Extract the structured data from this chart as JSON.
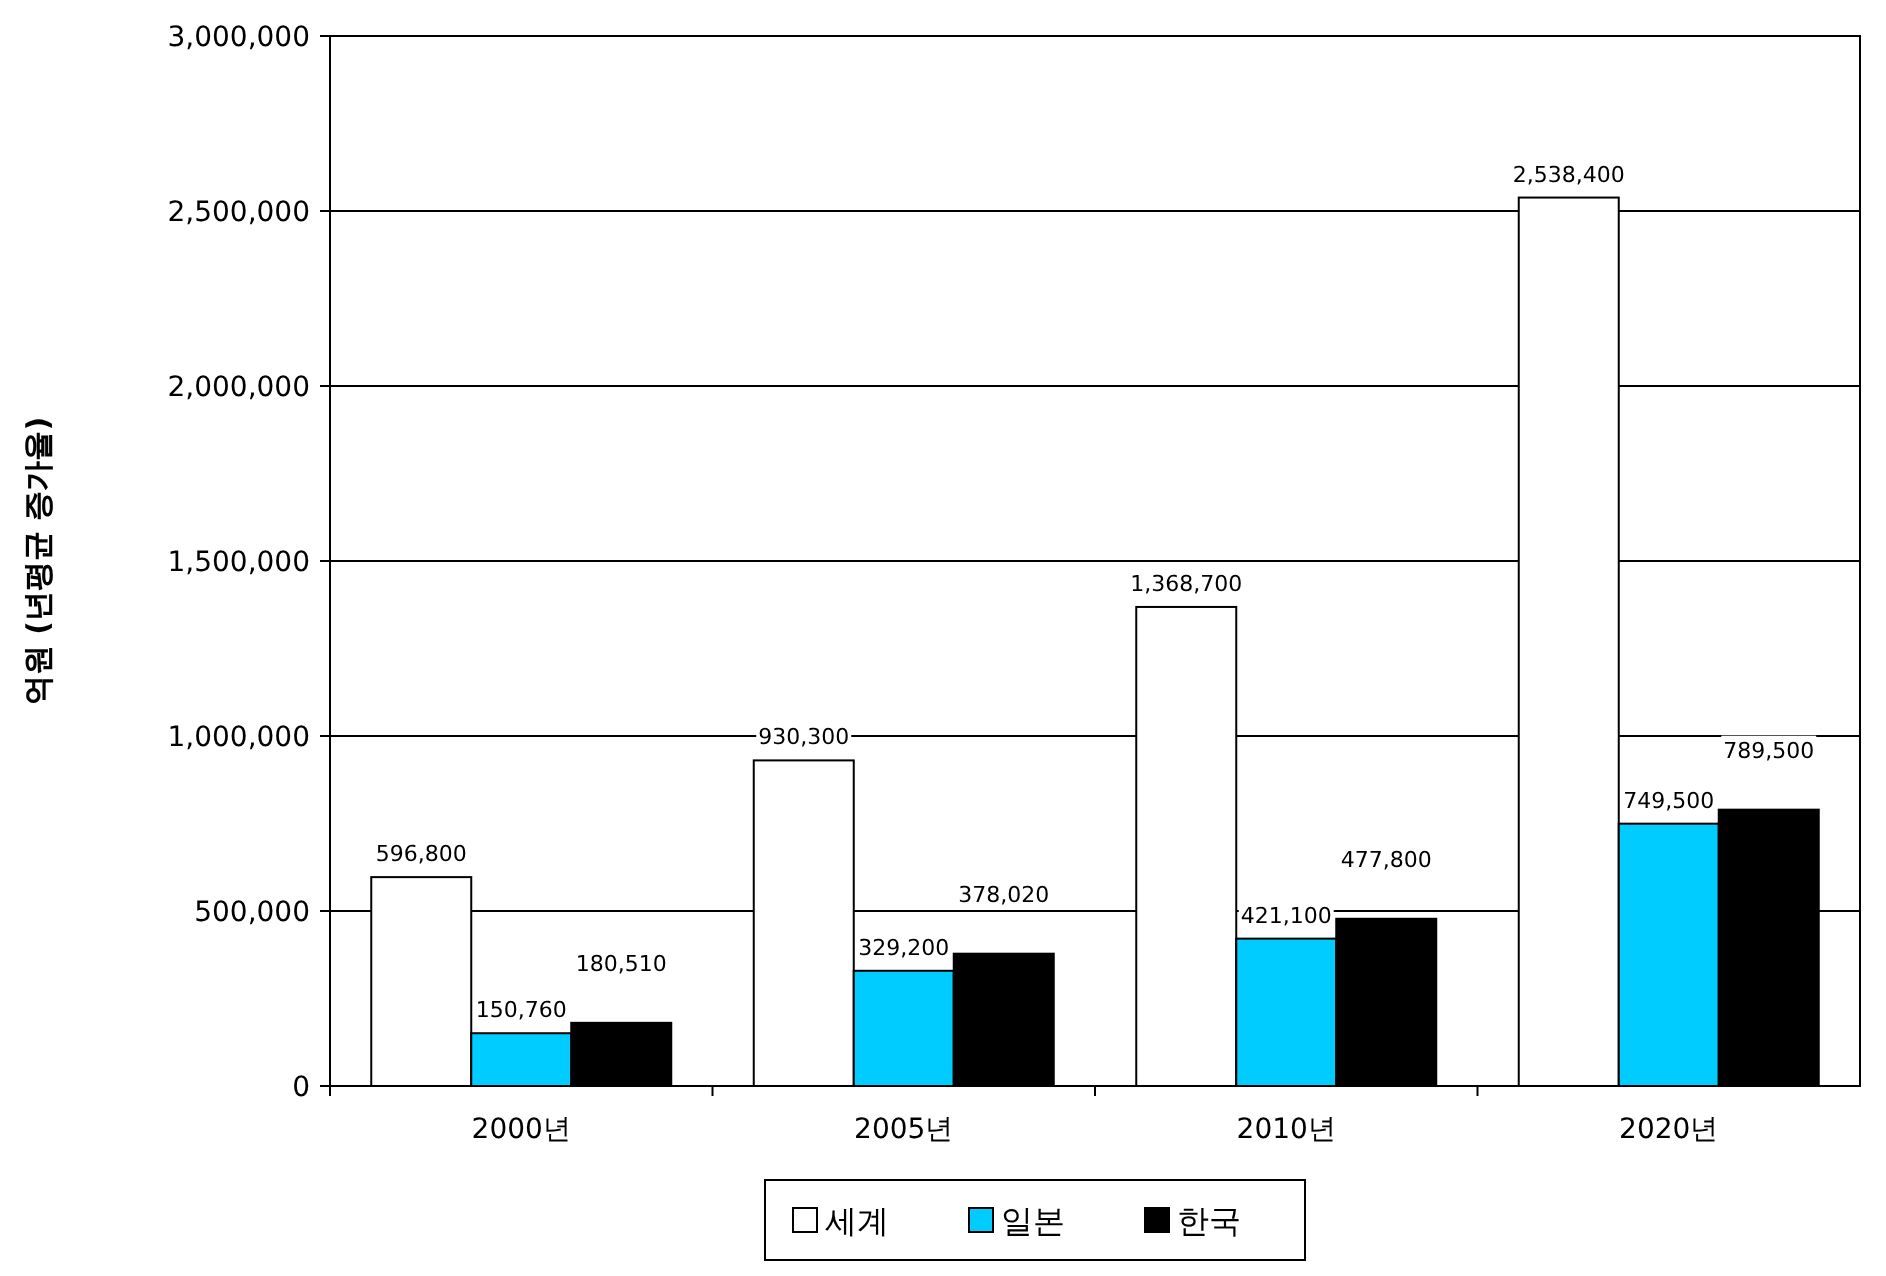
{
  "chart_data": {
    "type": "bar",
    "ylabel": "억원 (년평균 증가율)",
    "categories": [
      "2000년",
      "2005년",
      "2010년",
      "2020년"
    ],
    "series": [
      {
        "name": "세계",
        "color": "#ffffff",
        "values": [
          596800,
          930300,
          1368700,
          2538400
        ],
        "value_labels": [
          "596,800",
          "930,300",
          "1,368,700",
          "2,538,400"
        ]
      },
      {
        "name": "일본",
        "color": "#00ccff",
        "values": [
          150760,
          329200,
          421100,
          749500
        ],
        "value_labels": [
          "150,760",
          "329,200",
          "421,100",
          "749,500"
        ]
      },
      {
        "name": "한국",
        "color": "#000000",
        "values": [
          180510,
          378020,
          477800,
          789500
        ],
        "value_labels": [
          "180,510",
          "378,020",
          "477,800",
          "789,500"
        ]
      }
    ],
    "ylim": [
      0,
      3000000
    ],
    "yticks": [
      {
        "value": 0,
        "label": "0"
      },
      {
        "value": 500000,
        "label": "500,000"
      },
      {
        "value": 1000000,
        "label": "1,000,000"
      },
      {
        "value": 1500000,
        "label": "1,500,000"
      },
      {
        "value": 2000000,
        "label": "2,000,000"
      },
      {
        "value": 2500000,
        "label": "2,500,000"
      },
      {
        "value": 3000000,
        "label": "3,000,000"
      }
    ],
    "grid": "y",
    "legend": "bottom"
  }
}
